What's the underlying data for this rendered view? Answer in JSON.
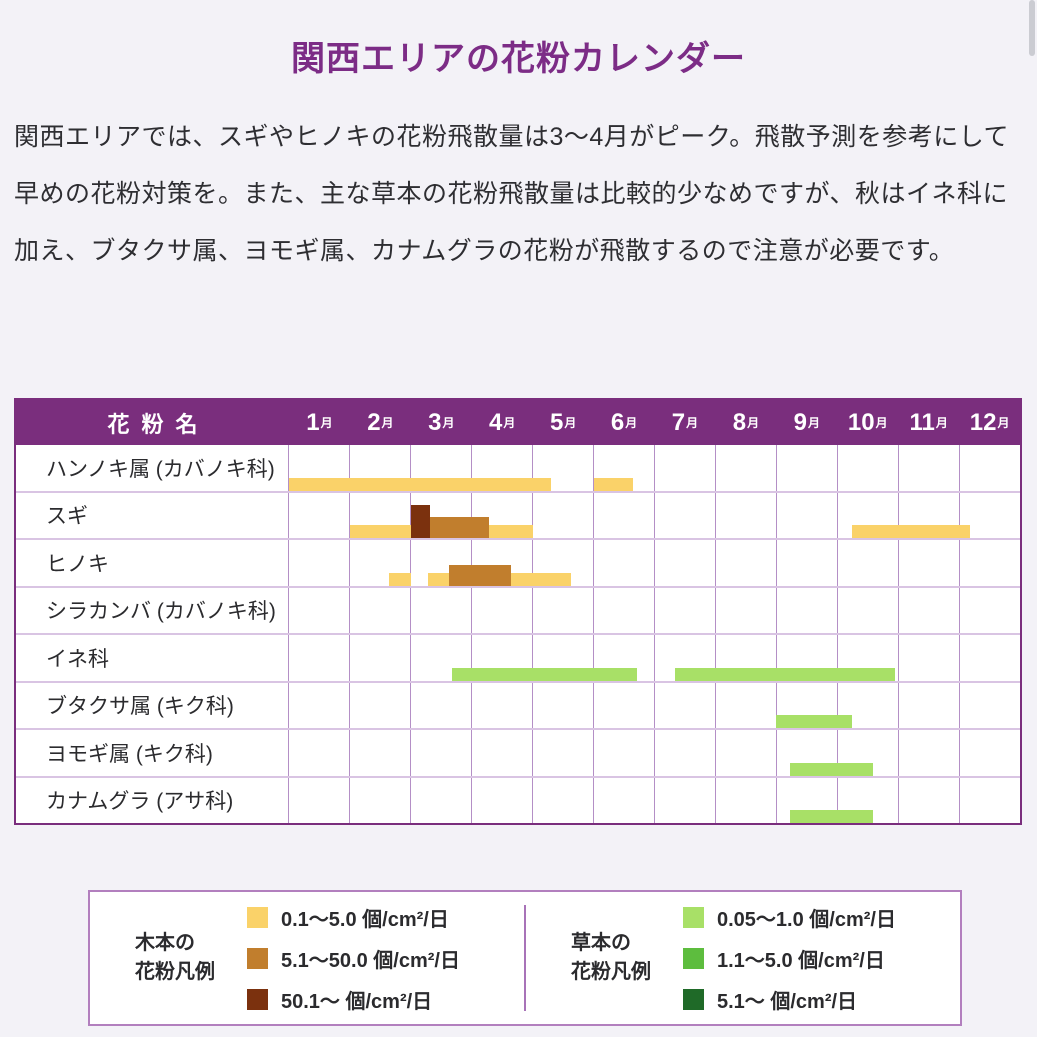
{
  "page": {
    "title": "関西エリアの花粉カレンダー",
    "intro": "関西エリアでは、スギやヒノキの花粉飛散量は3〜4月がピーク。飛散予測を参考にして早めの花粉対策を。また、主な草本の花粉飛散量は比較的少なめですが、秋はイネ科に加え、ブタクサ属、ヨモギ属、カナムグラの花粉が飛散するので注意が必要です。"
  },
  "table": {
    "name_header": "花粉名",
    "month_suffix": "月"
  },
  "chart_data": {
    "type": "table",
    "subtype": "pollen-calendar-gantt",
    "title": "関西エリアの花粉カレンダー",
    "months": [
      "1月",
      "2月",
      "3月",
      "4月",
      "5月",
      "6月",
      "7月",
      "8月",
      "9月",
      "10月",
      "11月",
      "12月"
    ],
    "x_axis": {
      "unit": "month",
      "range": [
        1,
        13
      ]
    },
    "rows": [
      {
        "name": "ハンノキ属 (カバノキ科)",
        "category": "tree",
        "segments": [
          {
            "from": 1.0,
            "to": 5.3,
            "level": 1
          },
          {
            "from": 6.0,
            "to": 6.65,
            "level": 1
          }
        ]
      },
      {
        "name": "スギ",
        "category": "tree",
        "segments": [
          {
            "from": 2.0,
            "to": 5.0,
            "level": 1
          },
          {
            "from": 3.0,
            "to": 3.31,
            "level": 3
          },
          {
            "from": 3.31,
            "to": 4.29,
            "level": 2
          },
          {
            "from": 10.25,
            "to": 12.18,
            "level": 1
          }
        ]
      },
      {
        "name": "ヒノキ",
        "category": "tree",
        "segments": [
          {
            "from": 2.64,
            "to": 3.0,
            "level": 1
          },
          {
            "from": 3.29,
            "to": 5.63,
            "level": 1
          },
          {
            "from": 3.62,
            "to": 4.65,
            "level": 2
          }
        ]
      },
      {
        "name": "シラカンバ (カバノキ科)",
        "category": "tree",
        "segments": []
      },
      {
        "name": "イネ科",
        "category": "herb",
        "segments": [
          {
            "from": 3.67,
            "to": 6.71,
            "level": 1
          },
          {
            "from": 7.33,
            "to": 10.95,
            "level": 1
          }
        ]
      },
      {
        "name": "ブタクサ属 (キク科)",
        "category": "herb",
        "segments": [
          {
            "from": 9.0,
            "to": 10.25,
            "level": 1
          }
        ]
      },
      {
        "name": "ヨモギ属 (キク科)",
        "category": "herb",
        "segments": [
          {
            "from": 9.23,
            "to": 10.59,
            "level": 1
          }
        ]
      },
      {
        "name": "カナムグラ (アサ科)",
        "category": "herb",
        "segments": [
          {
            "from": 9.23,
            "to": 10.59,
            "level": 1
          }
        ]
      }
    ],
    "levels": {
      "tree": {
        "1": "0.1〜5.0 個/cm²/日",
        "2": "5.1〜50.0 個/cm²/日",
        "3": "50.1〜 個/cm²/日"
      },
      "herb": {
        "1": "0.05〜1.0 個/cm²/日",
        "2": "1.1〜5.0 個/cm²/日",
        "3": "5.1〜 個/cm²/日"
      }
    }
  },
  "legend": {
    "tree": {
      "label_line1": "木本の",
      "label_line2": "花粉凡例",
      "items": [
        {
          "label": "0.1〜5.0 個/cm²/日"
        },
        {
          "label": "5.1〜50.0 個/cm²/日"
        },
        {
          "label": "50.1〜 個/cm²/日"
        }
      ]
    },
    "herb": {
      "label_line1": "草本の",
      "label_line2": "花粉凡例",
      "items": [
        {
          "label": "0.05〜1.0 個/cm²/日"
        },
        {
          "label": "1.1〜5.0 個/cm²/日"
        },
        {
          "label": "5.1〜 個/cm²/日"
        }
      ]
    }
  },
  "colors": {
    "page_bg": "#F3F2F7",
    "title_purple": "#7C2C86",
    "table_header_bg": "#7A2E7D",
    "grid_line": "#B48FC6",
    "row_line": "#D9C4E3",
    "legend_border": "#B27FBE",
    "text": "#2B2B2E",
    "tree": {
      "1": "#FAD269",
      "2": "#C17E2D",
      "3": "#7B310E"
    },
    "herb": {
      "1": "#A8E067",
      "2": "#5DBD3E",
      "3": "#1F6A28"
    }
  }
}
